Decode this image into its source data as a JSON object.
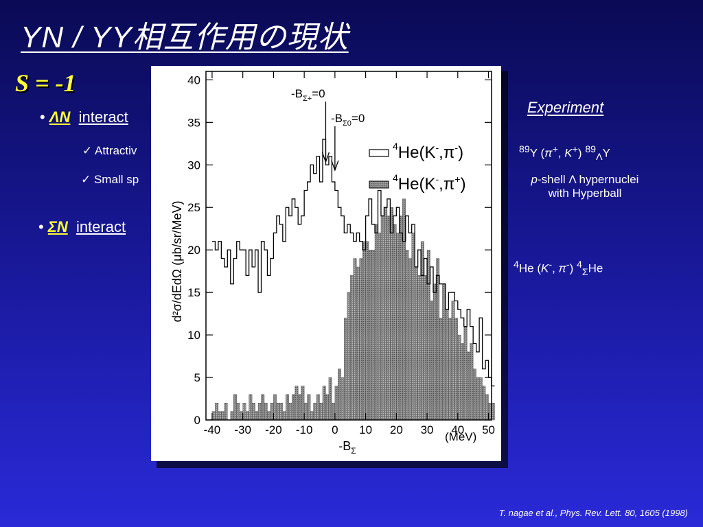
{
  "slide": {
    "title": "YN / YY相互作用の現状",
    "strangeness": "S = -1",
    "bullets": [
      {
        "symbol": "ΛN",
        "text": "interact"
      },
      {
        "symbol": "ΣN",
        "text": "interact"
      }
    ],
    "checks": [
      "✓ Attractiv",
      "✓ Small sp"
    ],
    "experiment": {
      "heading": "Experiment",
      "items": [
        {
          "a": "89",
          "b": "Y (",
          "c": "π",
          "d": "+",
          "e": ", ",
          "f": "K",
          "g": "+",
          "h": ") ",
          "i": "89",
          "j": "Λ",
          "k": "Y"
        },
        {
          "line1_italic": "p",
          "line1": "-shell Λ hypernuclei",
          "line2": "with Hyperball"
        },
        {
          "a": "4",
          "b": "He (",
          "c": "K",
          "d": "-",
          "e": ", ",
          "f": "π",
          "g": "-",
          "h": ") ",
          "i": "4",
          "j": "Σ",
          "k": "He"
        }
      ]
    },
    "citation": "T. nagae et al., Phys. Rev. Lett. 80, 1605 (1998)"
  },
  "chart_data": {
    "type": "bar",
    "x_label_main": "-B",
    "x_label_sub": "Σ",
    "x_unit": "(MeV)",
    "y_label": "d²σ/dEdΩ (μb/sr/MeV)",
    "xlim": [
      -42,
      51
    ],
    "ylim": [
      0,
      41
    ],
    "x_ticks": [
      -40,
      -30,
      -20,
      -10,
      0,
      10,
      20,
      30,
      40,
      50
    ],
    "y_ticks": [
      0,
      5,
      10,
      15,
      20,
      25,
      30,
      35,
      40
    ],
    "annotations": [
      {
        "text_main": "-B",
        "text_sub": "Σ+",
        "text_end": "=0",
        "x": -3
      },
      {
        "text_main": "-B",
        "text_sub": "Σ0",
        "text_end": "=0",
        "x": 0
      }
    ],
    "legend": [
      {
        "label_main": "He(K",
        "label_pre": "4",
        "label_sup": "-",
        "label_end": ",π",
        "label_sup2": "-",
        "label_close": ")",
        "style": "open"
      },
      {
        "label_main": "He(K",
        "label_pre": "4",
        "label_sup": "-",
        "label_end": ",π",
        "label_sup2": "+",
        "label_close": ")",
        "style": "hatched"
      }
    ],
    "bin_width": 1,
    "series": [
      {
        "name": "4He(K-,π-)",
        "x_start": -40,
        "values": [
          21,
          20,
          21,
          19,
          18,
          20,
          16,
          19,
          21,
          20,
          20,
          17,
          20,
          18,
          20,
          15,
          21,
          20,
          17,
          19,
          22,
          24,
          23,
          21,
          25,
          24,
          26,
          25,
          23,
          24,
          27,
          28,
          30,
          29,
          31,
          28,
          33,
          30,
          31,
          28,
          27,
          25,
          24,
          22,
          23,
          22,
          21,
          22,
          21,
          20,
          24,
          26,
          23,
          22,
          27,
          24,
          25,
          26,
          22,
          24,
          25,
          22,
          21,
          24,
          22,
          23,
          18,
          20,
          17,
          19,
          16,
          18,
          15,
          17,
          16,
          16,
          13,
          15,
          15,
          14,
          13,
          12,
          11,
          13,
          11,
          9,
          8,
          12,
          6,
          7,
          5,
          4
        ]
      },
      {
        "name": "4He(K-,π+)",
        "x_start": -40,
        "values": [
          1,
          2,
          1,
          1,
          2,
          0,
          1,
          3,
          2,
          1,
          2,
          1,
          3,
          2,
          1,
          2,
          3,
          2,
          1,
          2,
          3,
          2,
          2,
          1,
          3,
          2,
          3,
          4,
          3,
          4,
          2,
          3,
          1,
          2,
          3,
          2,
          4,
          3,
          5,
          2,
          4,
          6,
          5,
          12,
          15,
          17,
          19,
          18,
          19,
          21,
          21,
          20,
          20,
          23,
          22,
          24,
          25,
          24,
          25,
          23,
          22,
          24,
          26,
          20,
          19,
          22,
          18,
          17,
          21,
          17,
          20,
          14,
          16,
          19,
          12,
          16,
          13,
          12,
          14,
          12,
          10,
          9,
          11,
          8,
          9,
          6,
          5,
          5,
          4,
          3,
          2,
          2
        ]
      }
    ]
  }
}
